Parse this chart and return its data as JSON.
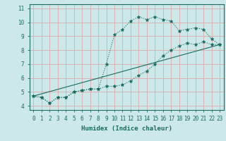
{
  "xlabel": "Humidex (Indice chaleur)",
  "background_color": "#cce8e8",
  "grid_color": "#ddaaaa",
  "line_color": "#1a6b60",
  "xlim": [
    -0.5,
    23.5
  ],
  "ylim": [
    3.7,
    11.3
  ],
  "xticks": [
    0,
    1,
    2,
    3,
    4,
    5,
    6,
    7,
    8,
    9,
    10,
    11,
    12,
    13,
    14,
    15,
    16,
    17,
    18,
    19,
    20,
    21,
    22,
    23
  ],
  "yticks": [
    4,
    5,
    6,
    7,
    8,
    9,
    10,
    11
  ],
  "line1_x": [
    0,
    1,
    2,
    3,
    4,
    5,
    6,
    7,
    8,
    9,
    10,
    11,
    12,
    13,
    14,
    15,
    16,
    17,
    18,
    19,
    20,
    21,
    22,
    23
  ],
  "line1_y": [
    4.7,
    4.6,
    4.2,
    4.6,
    4.6,
    5.0,
    5.1,
    5.2,
    5.2,
    7.0,
    9.1,
    9.5,
    10.1,
    10.4,
    10.2,
    10.4,
    10.2,
    10.1,
    9.4,
    9.5,
    9.6,
    9.5,
    8.8,
    8.4
  ],
  "line2_x": [
    0,
    1,
    2,
    3,
    4,
    5,
    6,
    7,
    8,
    9,
    10,
    11,
    12,
    13,
    14,
    15,
    16,
    17,
    18,
    19,
    20,
    21,
    22,
    23
  ],
  "line2_y": [
    4.7,
    4.6,
    4.2,
    4.6,
    4.6,
    5.0,
    5.1,
    5.2,
    5.2,
    5.4,
    5.4,
    5.5,
    5.8,
    6.2,
    6.5,
    7.0,
    7.6,
    8.0,
    8.3,
    8.5,
    8.4,
    8.6,
    8.4,
    8.4
  ],
  "line3_x": [
    0,
    23
  ],
  "line3_y": [
    4.7,
    8.4
  ]
}
